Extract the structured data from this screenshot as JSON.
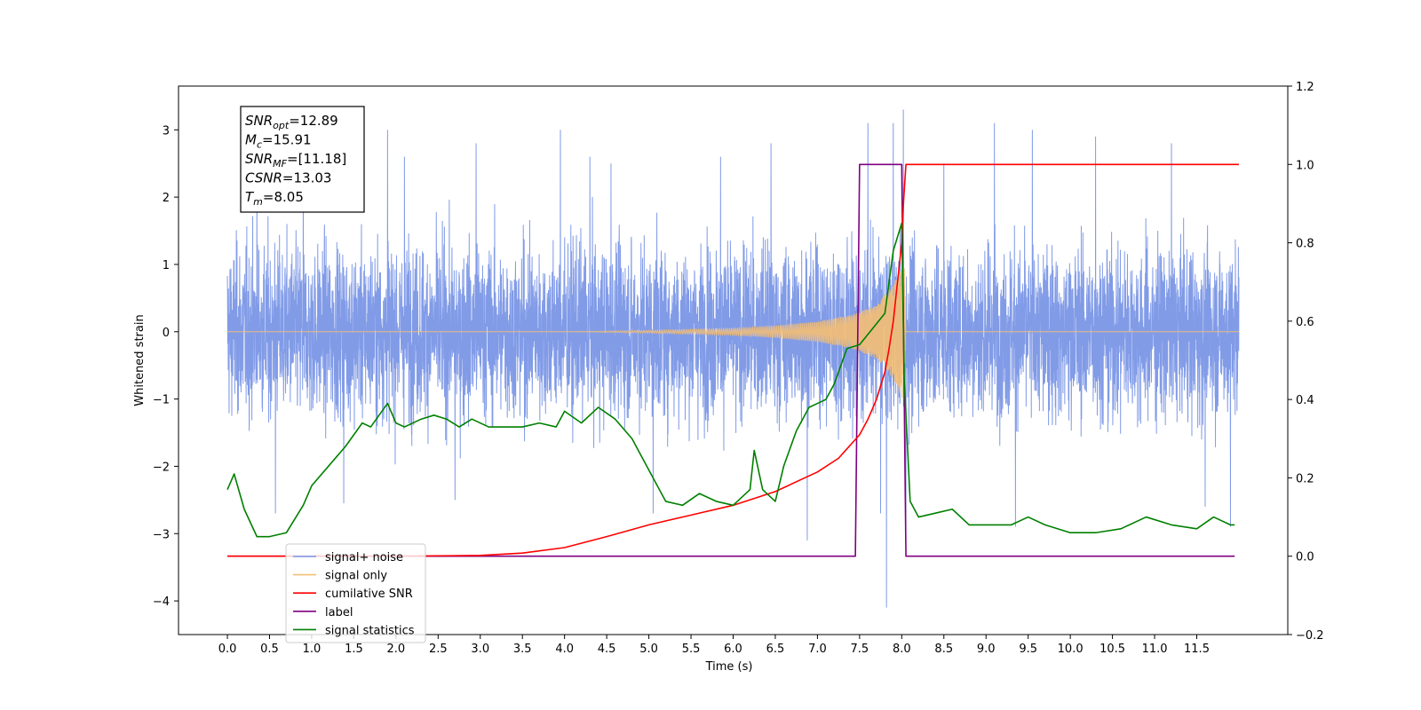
{
  "chart_data": {
    "type": "line",
    "xlabel": "Time (s)",
    "ylabel": "Whitened strain",
    "xlim": [
      -0.58,
      12.58
    ],
    "ylim_left": [
      -4.5,
      3.65
    ],
    "ylim_right": [
      -0.2,
      1.2
    ],
    "x_ticks": [
      0.0,
      0.5,
      1.0,
      1.5,
      2.0,
      2.5,
      3.0,
      3.5,
      4.0,
      4.5,
      5.0,
      5.5,
      6.0,
      6.5,
      7.0,
      7.5,
      8.0,
      8.5,
      9.0,
      9.5,
      10.0,
      10.5,
      11.0,
      11.5
    ],
    "x_tick_labels": [
      "0.0",
      "0.5",
      "1.0",
      "1.5",
      "2.0",
      "2.5",
      "3.0",
      "3.5",
      "4.0",
      "4.5",
      "5.0",
      "5.5",
      "6.0",
      "6.5",
      "7.0",
      "7.5",
      "8.0",
      "8.5",
      "9.0",
      "9.5",
      "10.0",
      "10.5",
      "11.0",
      "11.5"
    ],
    "y_left_ticks": [
      3,
      2,
      1,
      0,
      -1,
      -2,
      -3,
      -4
    ],
    "y_left_tick_labels": [
      "3",
      "2",
      "1",
      "0",
      "−1",
      "−2",
      "−3",
      "−4"
    ],
    "y_right_ticks": [
      1.2,
      1.0,
      0.8,
      0.6,
      0.4,
      0.2,
      0.0,
      -0.2
    ],
    "y_right_tick_labels": [
      "1.2",
      "1.0",
      "0.8",
      "0.6",
      "0.4",
      "0.2",
      "0.0",
      "−0.2"
    ],
    "grid": false,
    "legend_position": "lower-left",
    "annotation": [
      {
        "base": "SNR",
        "sub": "opt",
        "value": "=12.89"
      },
      {
        "base": "M",
        "sub": "c",
        "value": "=15.91"
      },
      {
        "base": "SNR",
        "sub": "MF",
        "value": "=[11.18]"
      },
      {
        "base": "CSNR",
        "sub": "",
        "value": "=13.03"
      },
      {
        "base": "T",
        "sub": "m",
        "value": "=8.05"
      }
    ],
    "series": [
      {
        "name": "signal+ noise",
        "color": "#7a96e6",
        "axis": "left",
        "x_range": [
          0.0,
          12.0
        ],
        "typical_range": [
          -1.6,
          1.6
        ],
        "extremes": [
          {
            "x": 0.35,
            "y": 2.45
          },
          {
            "x": 0.57,
            "y": -2.7
          },
          {
            "x": 0.9,
            "y": 2.6
          },
          {
            "x": 1.38,
            "y": -2.55
          },
          {
            "x": 1.9,
            "y": 3.0
          },
          {
            "x": 2.1,
            "y": 2.6
          },
          {
            "x": 2.7,
            "y": -2.5
          },
          {
            "x": 2.95,
            "y": 2.8
          },
          {
            "x": 3.95,
            "y": 3.0
          },
          {
            "x": 4.3,
            "y": 2.6
          },
          {
            "x": 4.55,
            "y": 2.5
          },
          {
            "x": 5.05,
            "y": -2.7
          },
          {
            "x": 5.85,
            "y": 2.6
          },
          {
            "x": 6.45,
            "y": 2.8
          },
          {
            "x": 6.88,
            "y": -3.1
          },
          {
            "x": 7.6,
            "y": 3.1
          },
          {
            "x": 7.75,
            "y": -2.7
          },
          {
            "x": 7.82,
            "y": -4.1
          },
          {
            "x": 7.9,
            "y": 3.1
          },
          {
            "x": 8.02,
            "y": 3.3
          },
          {
            "x": 8.05,
            "y": -3.0
          },
          {
            "x": 8.5,
            "y": 2.5
          },
          {
            "x": 9.1,
            "y": 3.1
          },
          {
            "x": 9.35,
            "y": -2.9
          },
          {
            "x": 9.55,
            "y": 3.0
          },
          {
            "x": 10.3,
            "y": 2.9
          },
          {
            "x": 11.2,
            "y": 2.8
          },
          {
            "x": 11.6,
            "y": -2.6
          },
          {
            "x": 11.9,
            "y": -2.9
          }
        ]
      },
      {
        "name": "signal only",
        "color": "#f5bf73",
        "axis": "left",
        "x_range": [
          0.0,
          12.0
        ],
        "peak_time": 8.05,
        "envelope": [
          [
            0.0,
            0.0
          ],
          [
            4.0,
            0.0
          ],
          [
            5.0,
            0.02
          ],
          [
            6.0,
            0.05
          ],
          [
            6.5,
            0.09
          ],
          [
            7.0,
            0.15
          ],
          [
            7.4,
            0.25
          ],
          [
            7.7,
            0.4
          ],
          [
            7.9,
            0.7
          ],
          [
            8.0,
            0.98
          ],
          [
            8.03,
            1.05
          ],
          [
            8.05,
            0.0
          ],
          [
            12.0,
            0.0
          ]
        ]
      },
      {
        "name": "cumilative SNR",
        "color": "#ff0000",
        "axis": "right",
        "x": [
          0.0,
          2.0,
          3.0,
          3.5,
          4.0,
          4.5,
          5.0,
          5.5,
          6.0,
          6.5,
          7.0,
          7.25,
          7.5,
          7.6,
          7.7,
          7.8,
          7.85,
          7.9,
          7.95,
          8.0,
          8.02,
          8.05,
          12.0
        ],
        "y": [
          0.0,
          0.0,
          0.002,
          0.008,
          0.022,
          0.05,
          0.08,
          0.105,
          0.13,
          0.165,
          0.215,
          0.25,
          0.31,
          0.35,
          0.4,
          0.47,
          0.53,
          0.6,
          0.7,
          0.8,
          0.9,
          1.0,
          1.0
        ]
      },
      {
        "name": "label",
        "color": "#800080",
        "axis": "right",
        "x": [
          0.0,
          7.45,
          7.5,
          8.0,
          8.05,
          11.95
        ],
        "y": [
          0.0,
          0.0,
          1.0,
          1.0,
          0.0,
          0.0
        ]
      },
      {
        "name": "signal statistics",
        "color": "#008000",
        "axis": "right",
        "x": [
          0.0,
          0.08,
          0.2,
          0.35,
          0.5,
          0.7,
          0.9,
          1.0,
          1.2,
          1.4,
          1.6,
          1.7,
          1.8,
          1.9,
          2.0,
          2.1,
          2.3,
          2.45,
          2.6,
          2.75,
          2.9,
          3.1,
          3.3,
          3.5,
          3.7,
          3.9,
          4.0,
          4.2,
          4.4,
          4.6,
          4.8,
          5.0,
          5.2,
          5.4,
          5.6,
          5.8,
          6.0,
          6.2,
          6.25,
          6.35,
          6.5,
          6.6,
          6.75,
          6.9,
          7.0,
          7.1,
          7.2,
          7.35,
          7.5,
          7.65,
          7.8,
          7.9,
          8.0,
          8.03,
          8.1,
          8.2,
          8.4,
          8.6,
          8.8,
          9.0,
          9.3,
          9.5,
          9.7,
          10.0,
          10.3,
          10.6,
          10.9,
          11.2,
          11.5,
          11.7,
          11.9,
          11.95
        ],
        "y": [
          0.17,
          0.21,
          0.12,
          0.05,
          0.05,
          0.06,
          0.13,
          0.18,
          0.23,
          0.28,
          0.34,
          0.33,
          0.36,
          0.39,
          0.34,
          0.33,
          0.35,
          0.36,
          0.35,
          0.33,
          0.35,
          0.33,
          0.33,
          0.33,
          0.34,
          0.33,
          0.37,
          0.34,
          0.38,
          0.35,
          0.3,
          0.22,
          0.14,
          0.13,
          0.16,
          0.14,
          0.13,
          0.17,
          0.27,
          0.17,
          0.14,
          0.23,
          0.32,
          0.38,
          0.39,
          0.4,
          0.44,
          0.53,
          0.54,
          0.58,
          0.62,
          0.78,
          0.85,
          0.45,
          0.14,
          0.1,
          0.11,
          0.12,
          0.08,
          0.08,
          0.08,
          0.1,
          0.08,
          0.06,
          0.06,
          0.07,
          0.1,
          0.08,
          0.07,
          0.1,
          0.08,
          0.08
        ]
      }
    ],
    "legend_entries": [
      "signal+ noise",
      "signal only",
      "cumilative SNR",
      "label",
      "signal statistics"
    ]
  }
}
